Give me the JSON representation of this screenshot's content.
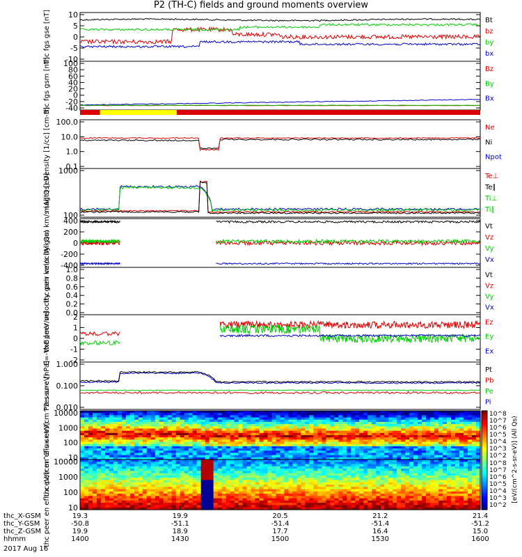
{
  "chart_data": {
    "title": "P2 (TH-C) fields and ground moments overview",
    "type": "line",
    "x_axis": {
      "rows": [
        {
          "label": "thc_X-GSM",
          "values": [
            "19.3",
            "19.9",
            "20.5",
            "21.2",
            "21.4"
          ]
        },
        {
          "label": "thc_Y-GSM",
          "values": [
            "-50.8",
            "-51.1",
            "-51.4",
            "-51.4",
            "-51.2"
          ]
        },
        {
          "label": "thc_Z-GSM",
          "values": [
            "19.9",
            "18.9",
            "17.7",
            "16.4",
            "15.0"
          ]
        },
        {
          "label": "hhmm",
          "values": [
            "1400",
            "1430",
            "1500",
            "1530",
            "1600"
          ]
        }
      ],
      "date": "2017 Aug 16",
      "range_hhmm": [
        1400,
        1600
      ]
    },
    "panels": [
      {
        "id": "fgs_gse",
        "ylabel": "thc fgs gse [nT]",
        "yticks": [
          "10",
          "5",
          "0",
          "-5",
          "-10"
        ],
        "ylim": [
          -10,
          10
        ],
        "legend": [
          {
            "name": "Bt",
            "color": "#000000"
          },
          {
            "name": "bz",
            "color": "#dd0000"
          },
          {
            "name": "by",
            "color": "#00cc00"
          },
          {
            "name": "bx",
            "color": "#0000cc"
          }
        ]
      },
      {
        "id": "fgs_gsm",
        "ylabel": "thc fgs gsm [nT]",
        "yticks": [
          "100",
          "80",
          "60",
          "40",
          "20",
          "0",
          "-20",
          "-40"
        ],
        "ylim": [
          -50,
          100
        ],
        "legend": [
          {
            "name": "Bz",
            "color": "#dd0000"
          },
          {
            "name": "By",
            "color": "#00cc00"
          },
          {
            "name": "Bx",
            "color": "#0000cc"
          }
        ]
      },
      {
        "id": "density",
        "ylabel": "Density [1/cc] [cm-3]",
        "yticks": [
          "100.0",
          "10.0",
          "1.0",
          "0.1"
        ],
        "ylim": [
          0.1,
          100
        ],
        "log": true,
        "legend": [
          {
            "name": "Ne",
            "color": "#dd0000"
          },
          {
            "name": "Ni",
            "color": "#000000"
          },
          {
            "name": "Npot",
            "color": "#0000cc"
          }
        ]
      },
      {
        "id": "temperature",
        "ylabel": "magt3 [eV]",
        "yticks": [
          "1000",
          "100"
        ],
        "ylim": [
          40,
          2500
        ],
        "log": true,
        "legend": [
          {
            "name": "Te⊥",
            "color": "#dd0000"
          },
          {
            "name": "Te∥",
            "color": "#000000"
          },
          {
            "name": "Ti⊥",
            "color": "#00cc00"
          },
          {
            "name": "Ti∥",
            "color": "#00cc00"
          }
        ]
      },
      {
        "id": "peir_velocity",
        "ylabel": "thc peir velocity gsm km/s (All Qs)",
        "yticks": [
          "400",
          "200",
          "0",
          "-200",
          "-400"
        ],
        "ylim": [
          -400,
          400
        ],
        "legend": [
          {
            "name": "Vt",
            "color": "#000000"
          },
          {
            "name": "Vz",
            "color": "#dd0000"
          },
          {
            "name": "Vy",
            "color": "#00cc00"
          },
          {
            "name": "Vx",
            "color": "#0000cc"
          }
        ]
      },
      {
        "id": "peer_velocity",
        "ylabel": "thc peer velocity gsm km/s (All Qs)",
        "yticks": [
          "1.0",
          "0.8",
          "0.6",
          "0.4",
          "0.2",
          "0.0"
        ],
        "ylim": [
          0,
          1
        ],
        "legend": [
          {
            "name": "Vt",
            "color": "#000000"
          },
          {
            "name": "Vz",
            "color": "#dd0000"
          },
          {
            "name": "Vy",
            "color": "#00cc00"
          },
          {
            "name": "Vx",
            "color": "#0000cc"
          }
        ]
      },
      {
        "id": "efield",
        "ylabel": "E=-VxB [mV/m]",
        "yticks": [
          "2",
          "1",
          "0",
          "-1",
          "-2"
        ],
        "ylim": [
          -2.5,
          2.5
        ],
        "legend": [
          {
            "name": "Ez",
            "color": "#dd0000"
          },
          {
            "name": "Ey",
            "color": "#00cc00"
          },
          {
            "name": "Ex",
            "color": "#0000cc"
          }
        ]
      },
      {
        "id": "pressure",
        "ylabel": "Pressure [nPa]",
        "yticks": [
          "1.000",
          "0.100",
          "0.010"
        ],
        "ylim": [
          0.001,
          1.2
        ],
        "log": true,
        "legend": [
          {
            "name": "Pt",
            "color": "#000000"
          },
          {
            "name": "Pb",
            "color": "#dd0000"
          },
          {
            "name": "Pe",
            "color": "#00cc00"
          },
          {
            "name": "Pi",
            "color": "#0000cc"
          }
        ]
      },
      {
        "id": "peir_spectrogram",
        "ylabel": "thc peir en eflux eV/(cm^2-s-sr-eV)",
        "yticks": [
          "10000",
          "1000",
          "100",
          "10"
        ],
        "type": "heatmap"
      },
      {
        "id": "peer_spectrogram",
        "ylabel": "thc peer en eflux eV/(cm^2-s-sr-eV)",
        "yticks": [
          "10000",
          "1000",
          "100",
          "10"
        ],
        "type": "heatmap"
      }
    ],
    "colorbar": {
      "label": "[eV/(cm^2-s-sr-eV)] (All Qs)",
      "upper_ticks": [
        "10^8",
        "10^7",
        "10^6",
        "10^5",
        "10^4",
        "10^3",
        "10^2"
      ],
      "lower_ticks": [
        "10^8",
        "10^7",
        "10^6",
        "10^5",
        "10^4",
        "10^3",
        "10^2"
      ]
    },
    "region_bar": {
      "segments": [
        {
          "from": 1400,
          "to": 1406,
          "color": "#dd0000"
        },
        {
          "from": 1406,
          "to": 1429,
          "color": "#ffff00"
        },
        {
          "from": 1429,
          "to": 1600,
          "color": "#dd0000"
        }
      ]
    }
  }
}
